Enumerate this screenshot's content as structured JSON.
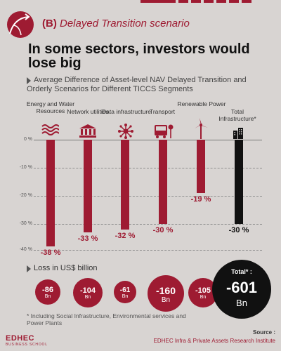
{
  "scenario": {
    "code": "(B)",
    "label": "Delayed Transition scenario"
  },
  "headline": "In some sectors, investors would lose big",
  "subtitle": "Average Difference of Asset-level NAV Delayed Transition and Orderly Scenarios for Different TICCS Segments",
  "chart_data": {
    "type": "bar",
    "categories": [
      "Energy and Water Resources",
      "Network utilities",
      "Data infrastructure",
      "Transport",
      "Renewable Power",
      "Total Infrastructure*"
    ],
    "values": [
      -38,
      -33,
      -32,
      -30,
      -19,
      -30
    ],
    "value_labels": [
      "-38 %",
      "-33 %",
      "-32 %",
      "-30 %",
      "-19 %",
      "-30 %"
    ],
    "unit": "%",
    "y_ticks": [
      "0 %",
      "-10 %",
      "-20 %",
      "-30 %",
      "-40 %"
    ],
    "ylim": [
      -40,
      0
    ],
    "grid": true,
    "colors": {
      "bar": "#9e1b32",
      "total_bar": "#111111"
    }
  },
  "loss": {
    "title": "Loss in US$ billion",
    "values": [
      "-86",
      "-104",
      "-61",
      "-160",
      "-105"
    ],
    "unit": "Bn",
    "total_label": "Total* :",
    "total_value": "-601",
    "total_unit": "Bn"
  },
  "icons": [
    "waves-icon",
    "building-icon",
    "network-icon",
    "bus-stop-icon",
    "wind-turbine-icon",
    "skyscraper-icon"
  ],
  "footnote": "* Including Social Infrastructure, Environmental services and Power Plants",
  "logo": {
    "name": "EDHEC",
    "tagline": "BUSINESS SCHOOL"
  },
  "source": {
    "label": "Source :",
    "value": "EDHEC Infra & Private Assets Research Institute"
  },
  "colors": {
    "accent": "#9e1b32",
    "background": "#d8d4d2",
    "dark": "#111111"
  }
}
